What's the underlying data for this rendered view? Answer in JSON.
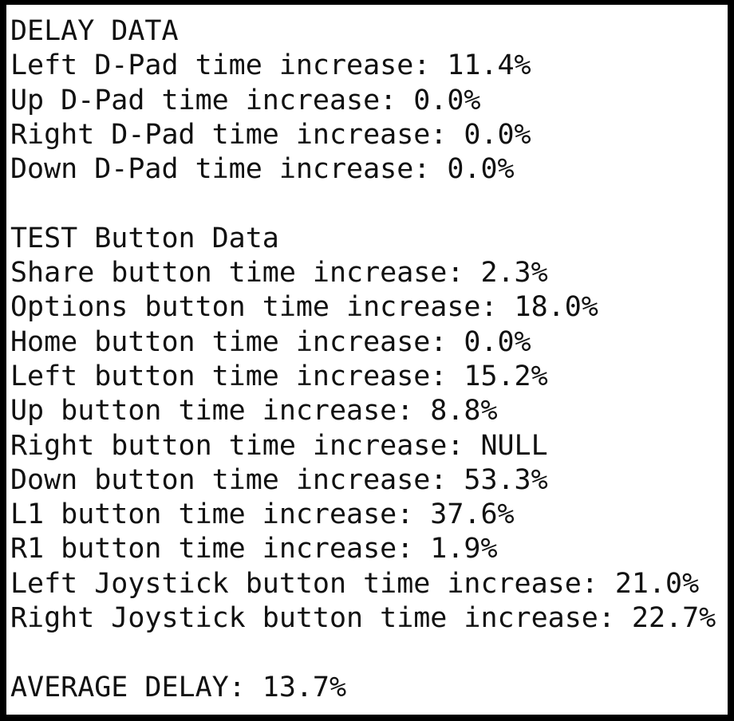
{
  "sections": [
    {
      "title": "DELAY DATA",
      "lines": [
        "Left D-Pad time increase: 11.4%",
        "Up D-Pad time increase: 0.0%",
        "Right D-Pad time increase: 0.0%",
        "Down D-Pad time increase: 0.0%"
      ]
    },
    {
      "title": "TEST Button Data",
      "lines": [
        "Share button time increase: 2.3%",
        "Options button time increase: 18.0%",
        "Home button time increase: 0.0%",
        "Left button time increase: 15.2%",
        "Up button time increase: 8.8%",
        "Right button time increase: NULL",
        "Down button time increase: 53.3%",
        "L1 button time increase: 37.6%",
        "R1 button time increase: 1.9%",
        "Left Joystick button time increase: 21.0%",
        "Right Joystick button time increase: 22.7%"
      ]
    }
  ],
  "summary": "AVERAGE DELAY: 13.7%"
}
